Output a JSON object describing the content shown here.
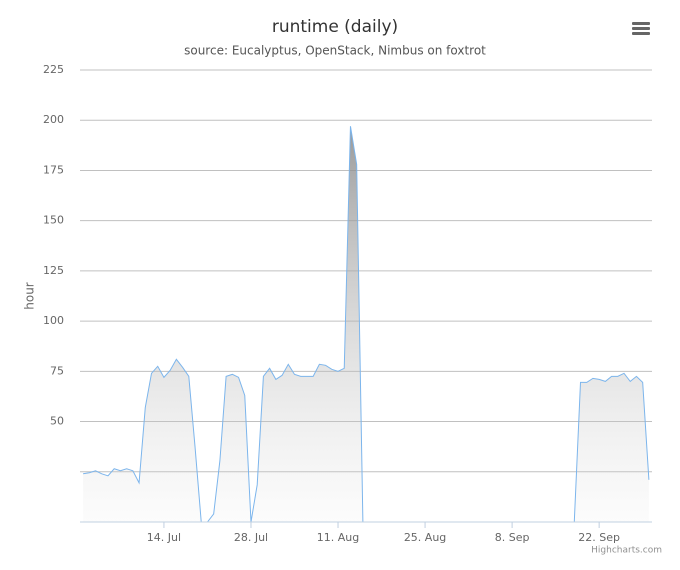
{
  "chart_data": {
    "type": "area",
    "title": "runtime (daily)",
    "subtitle": "source: Eucalyptus, OpenStack, Nimbus on foxtrot",
    "y_label": "hour",
    "credit": "Highcharts.com",
    "x": [
      "1. Jul",
      "2. Jul",
      "3. Jul",
      "4. Jul",
      "5. Jul",
      "6. Jul",
      "7. Jul",
      "8. Jul",
      "9. Jul",
      "10. Jul",
      "11. Jul",
      "12. Jul",
      "13. Jul",
      "14. Jul",
      "15. Jul",
      "16. Jul",
      "17. Jul",
      "18. Jul",
      "19. Jul",
      "20. Jul",
      "21. Jul",
      "22. Jul",
      "23. Jul",
      "24. Jul",
      "25. Jul",
      "26. Jul",
      "27. Jul",
      "28. Jul",
      "29. Jul",
      "30. Jul",
      "31. Jul",
      "1. Aug",
      "2. Aug",
      "3. Aug",
      "4. Aug",
      "5. Aug",
      "6. Aug",
      "7. Aug",
      "8. Aug",
      "9. Aug",
      "10. Aug",
      "11. Aug",
      "12. Aug",
      "13. Aug",
      "14. Aug",
      "15. Aug",
      "16. Aug",
      "17. Aug",
      "18. Aug",
      "19. Aug",
      "20. Aug",
      "21. Aug",
      "22. Aug",
      "23. Aug",
      "24. Aug",
      "25. Aug",
      "26. Aug",
      "27. Aug",
      "28. Aug",
      "29. Aug",
      "30. Aug",
      "31. Aug",
      "1. Sep",
      "2. Sep",
      "3. Sep",
      "4. Sep",
      "5. Sep",
      "6. Sep",
      "7. Sep",
      "8. Sep",
      "9. Sep",
      "10. Sep",
      "11. Sep",
      "12. Sep",
      "13. Sep",
      "14. Sep",
      "15. Sep",
      "16. Sep",
      "17. Sep",
      "18. Sep",
      "19. Sep",
      "20. Sep",
      "21. Sep",
      "22. Sep",
      "23. Sep",
      "24. Sep",
      "25. Sep",
      "26. Sep",
      "27. Sep",
      "28. Sep",
      "29. Sep",
      "30. Sep"
    ],
    "values": [
      24,
      24.5,
      25.5,
      24,
      23,
      26.5,
      25.5,
      26.5,
      25.5,
      19.5,
      57,
      74,
      77.5,
      72,
      75.5,
      81,
      77,
      72.5,
      37.5,
      0,
      0,
      4,
      30.5,
      72.5,
      73.5,
      72,
      63,
      0,
      18.5,
      72.5,
      76.5,
      71,
      73,
      78.5,
      73.5,
      72.5,
      72.5,
      72.5,
      78.5,
      78,
      76,
      75,
      76.5,
      197,
      178,
      0,
      0,
      0,
      0,
      0,
      0,
      0,
      0,
      0,
      0,
      0,
      0,
      0,
      0,
      0,
      0,
      0,
      0,
      0,
      0,
      0,
      0,
      0,
      0,
      0,
      0,
      0,
      0,
      0,
      0,
      0,
      0,
      0,
      0,
      0,
      69.5,
      69.5,
      71.5,
      71,
      70,
      72.5,
      72.5,
      74,
      70,
      72.5,
      69.5,
      21
    ],
    "color": "#7cb5ec",
    "xticks": [
      "14. Jul",
      "28. Jul",
      "11. Aug",
      "25. Aug",
      "8. Sep",
      "22. Sep"
    ],
    "ylim": [
      0,
      225
    ],
    "yticks": [
      50,
      75,
      100,
      125,
      150,
      175,
      200,
      225
    ],
    "grid_values": [
      25,
      50,
      75,
      100,
      125,
      150,
      175,
      200,
      225
    ],
    "grid": true
  }
}
